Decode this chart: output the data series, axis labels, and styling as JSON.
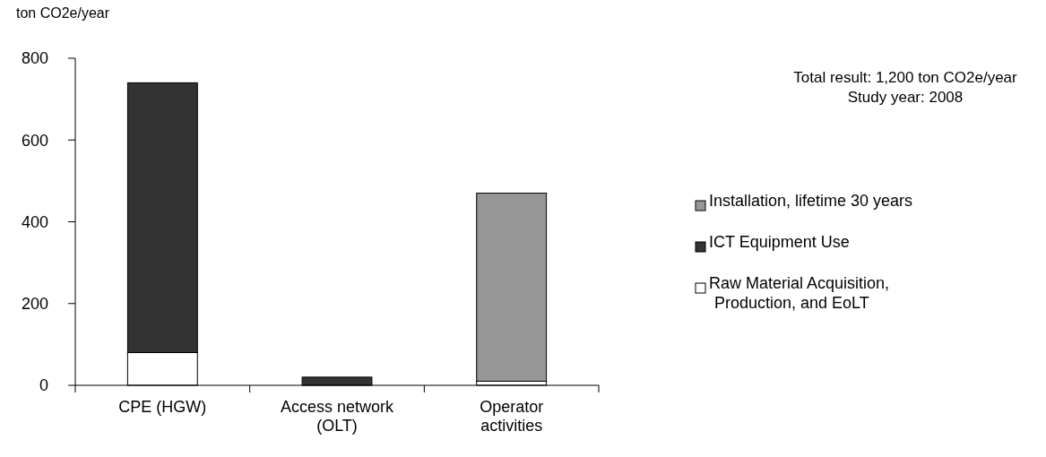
{
  "chart_data": {
    "type": "bar",
    "stacked": true,
    "ylabel": "ton CO2e/year",
    "categories": [
      "CPE (HGW)",
      "Access network (OLT)",
      "Operator activities"
    ],
    "series": [
      {
        "name": "Raw Material Acquisition, Production, and EoLT",
        "color": "#ffffff",
        "values": [
          80,
          0,
          10
        ]
      },
      {
        "name": "ICT Equipment Use",
        "color": "#333333",
        "values": [
          660,
          20,
          0
        ]
      },
      {
        "name": "Installation, lifetime 30 years",
        "color": "#969696",
        "values": [
          0,
          0,
          460
        ]
      }
    ],
    "ylim": [
      0,
      800
    ],
    "yticks": [
      0,
      200,
      400,
      600,
      800
    ],
    "grid": false,
    "legend": "right",
    "annotations": [
      "Total result: 1,200 ton CO2e/year",
      "Study year: 2008"
    ]
  }
}
